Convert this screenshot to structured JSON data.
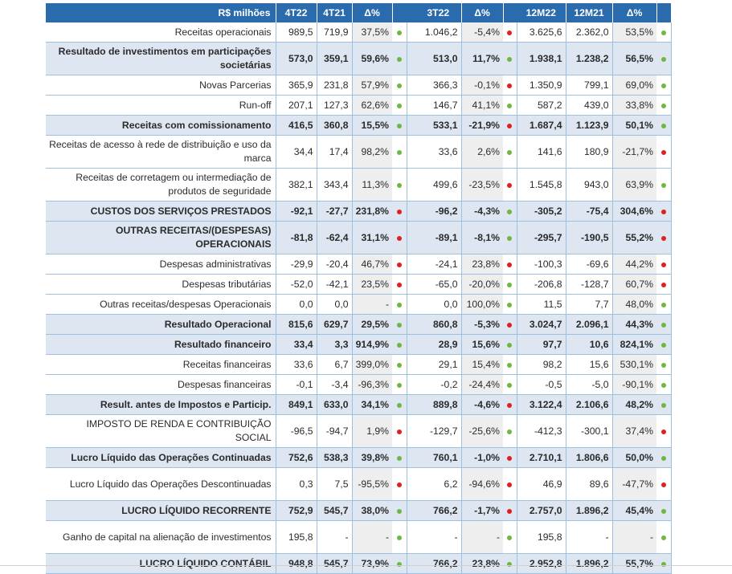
{
  "header": {
    "label": "R$ milhões",
    "columns": [
      "4T22",
      "4T21",
      "Δ%",
      "3T22",
      "Δ%",
      "12M22",
      "12M21",
      "Δ%"
    ]
  },
  "colors": {
    "header_bg": "#2a6bad",
    "highlight_row": "#dde6f1",
    "positive_dot": "#6fb83f",
    "negative_dot": "#e02020"
  },
  "rows": [
    {
      "label": "Receitas operacionais",
      "bold": false,
      "two_line": false,
      "v4t22": "989,5",
      "v4t21": "719,9",
      "d1": "37,5%",
      "s1": "green",
      "v3t22": "1.046,2",
      "d2": "-5,4%",
      "s2": "red",
      "v12m22": "3.625,6",
      "v12m21": "2.362,0",
      "d3": "53,5%",
      "s3": "green"
    },
    {
      "label": "Resultado de investimentos em participações societárias",
      "bold": true,
      "two_line": true,
      "v4t22": "573,0",
      "v4t21": "359,1",
      "d1": "59,6%",
      "s1": "green",
      "v3t22": "513,0",
      "d2": "11,7%",
      "s2": "green",
      "v12m22": "1.938,1",
      "v12m21": "1.238,2",
      "d3": "56,5%",
      "s3": "green"
    },
    {
      "label": "Novas Parcerias",
      "bold": false,
      "two_line": false,
      "v4t22": "365,9",
      "v4t21": "231,8",
      "d1": "57,9%",
      "s1": "green",
      "v3t22": "366,3",
      "d2": "-0,1%",
      "s2": "red",
      "v12m22": "1.350,9",
      "v12m21": "799,1",
      "d3": "69,0%",
      "s3": "green"
    },
    {
      "label": "Run-off",
      "bold": false,
      "two_line": false,
      "v4t22": "207,1",
      "v4t21": "127,3",
      "d1": "62,6%",
      "s1": "green",
      "v3t22": "146,7",
      "d2": "41,1%",
      "s2": "green",
      "v12m22": "587,2",
      "v12m21": "439,0",
      "d3": "33,8%",
      "s3": "green"
    },
    {
      "label": "Receitas com comissionamento",
      "bold": true,
      "two_line": false,
      "v4t22": "416,5",
      "v4t21": "360,8",
      "d1": "15,5%",
      "s1": "green",
      "v3t22": "533,1",
      "d2": "-21,9%",
      "s2": "red",
      "v12m22": "1.687,4",
      "v12m21": "1.123,9",
      "d3": "50,1%",
      "s3": "green"
    },
    {
      "label": "Receitas de acesso à rede de distribuição e uso da marca",
      "bold": false,
      "two_line": true,
      "v4t22": "34,4",
      "v4t21": "17,4",
      "d1": "98,2%",
      "s1": "green",
      "v3t22": "33,6",
      "d2": "2,6%",
      "s2": "green",
      "v12m22": "141,6",
      "v12m21": "180,9",
      "d3": "-21,7%",
      "s3": "red"
    },
    {
      "label": "Receitas de corretagem ou intermediação de produtos de seguridade",
      "bold": false,
      "two_line": true,
      "v4t22": "382,1",
      "v4t21": "343,4",
      "d1": "11,3%",
      "s1": "green",
      "v3t22": "499,6",
      "d2": "-23,5%",
      "s2": "red",
      "v12m22": "1.545,8",
      "v12m21": "943,0",
      "d3": "63,9%",
      "s3": "green"
    },
    {
      "label": "CUSTOS DOS SERVIÇOS PRESTADOS",
      "bold": true,
      "two_line": false,
      "v4t22": "-92,1",
      "v4t21": "-27,7",
      "d1": "231,8%",
      "s1": "red",
      "v3t22": "-96,2",
      "d2": "-4,3%",
      "s2": "green",
      "v12m22": "-305,2",
      "v12m21": "-75,4",
      "d3": "304,6%",
      "s3": "red"
    },
    {
      "label": "OUTRAS RECEITAS/(DESPESAS) OPERACIONAIS",
      "bold": true,
      "two_line": true,
      "v4t22": "-81,8",
      "v4t21": "-62,4",
      "d1": "31,1%",
      "s1": "red",
      "v3t22": "-89,1",
      "d2": "-8,1%",
      "s2": "green",
      "v12m22": "-295,7",
      "v12m21": "-190,5",
      "d3": "55,2%",
      "s3": "red"
    },
    {
      "label": "Despesas administrativas",
      "bold": false,
      "two_line": false,
      "v4t22": "-29,9",
      "v4t21": "-20,4",
      "d1": "46,7%",
      "s1": "red",
      "v3t22": "-24,1",
      "d2": "23,8%",
      "s2": "red",
      "v12m22": "-100,3",
      "v12m21": "-69,6",
      "d3": "44,2%",
      "s3": "red"
    },
    {
      "label": "Despesas tributárias",
      "bold": false,
      "two_line": false,
      "v4t22": "-52,0",
      "v4t21": "-42,1",
      "d1": "23,5%",
      "s1": "red",
      "v3t22": "-65,0",
      "d2": "-20,0%",
      "s2": "green",
      "v12m22": "-206,8",
      "v12m21": "-128,7",
      "d3": "60,7%",
      "s3": "red"
    },
    {
      "label": "Outras receitas/despesas Operacionais",
      "bold": false,
      "two_line": false,
      "v4t22": "0,0",
      "v4t21": "0,0",
      "d1": "-",
      "s1": "green",
      "v3t22": "0,0",
      "d2": "100,0%",
      "s2": "green",
      "v12m22": "11,5",
      "v12m21": "7,7",
      "d3": "48,0%",
      "s3": "green"
    },
    {
      "label": "Resultado Operacional",
      "bold": true,
      "two_line": false,
      "v4t22": "815,6",
      "v4t21": "629,7",
      "d1": "29,5%",
      "s1": "green",
      "v3t22": "860,8",
      "d2": "-5,3%",
      "s2": "red",
      "v12m22": "3.024,7",
      "v12m21": "2.096,1",
      "d3": "44,3%",
      "s3": "green"
    },
    {
      "label": "Resultado financeiro",
      "bold": true,
      "two_line": false,
      "v4t22": "33,4",
      "v4t21": "3,3",
      "d1": "914,9%",
      "s1": "green",
      "v3t22": "28,9",
      "d2": "15,6%",
      "s2": "green",
      "v12m22": "97,7",
      "v12m21": "10,6",
      "d3": "824,1%",
      "s3": "green"
    },
    {
      "label": "Receitas financeiras",
      "bold": false,
      "two_line": false,
      "v4t22": "33,6",
      "v4t21": "6,7",
      "d1": "399,0%",
      "s1": "green",
      "v3t22": "29,1",
      "d2": "15,4%",
      "s2": "green",
      "v12m22": "98,2",
      "v12m21": "15,6",
      "d3": "530,1%",
      "s3": "green"
    },
    {
      "label": "Despesas financeiras",
      "bold": false,
      "two_line": false,
      "v4t22": "-0,1",
      "v4t21": "-3,4",
      "d1": "-96,3%",
      "s1": "green",
      "v3t22": "-0,2",
      "d2": "-24,4%",
      "s2": "green",
      "v12m22": "-0,5",
      "v12m21": "-5,0",
      "d3": "-90,1%",
      "s3": "green"
    },
    {
      "label": "Result. antes de Impostos e Particip.",
      "bold": true,
      "two_line": false,
      "v4t22": "849,1",
      "v4t21": "633,0",
      "d1": "34,1%",
      "s1": "green",
      "v3t22": "889,8",
      "d2": "-4,6%",
      "s2": "red",
      "v12m22": "3.122,4",
      "v12m21": "2.106,6",
      "d3": "48,2%",
      "s3": "green"
    },
    {
      "label": "IMPOSTO DE RENDA E CONTRIBUIÇÃO SOCIAL",
      "bold": false,
      "two_line": true,
      "v4t22": "-96,5",
      "v4t21": "-94,7",
      "d1": "1,9%",
      "s1": "red",
      "v3t22": "-129,7",
      "d2": "-25,6%",
      "s2": "green",
      "v12m22": "-412,3",
      "v12m21": "-300,1",
      "d3": "37,4%",
      "s3": "red"
    },
    {
      "label": "Lucro Líquido das Operações Continuadas",
      "bold": true,
      "two_line": false,
      "v4t22": "752,6",
      "v4t21": "538,3",
      "d1": "39,8%",
      "s1": "green",
      "v3t22": "760,1",
      "d2": "-1,0%",
      "s2": "red",
      "v12m22": "2.710,1",
      "v12m21": "1.806,6",
      "d3": "50,0%",
      "s3": "green"
    },
    {
      "label": "Lucro Líquido das Operações Descontinuadas",
      "bold": false,
      "two_line": true,
      "v4t22": "0,3",
      "v4t21": "7,5",
      "d1": "-95,5%",
      "s1": "red",
      "v3t22": "6,2",
      "d2": "-94,6%",
      "s2": "red",
      "v12m22": "46,9",
      "v12m21": "89,6",
      "d3": "-47,7%",
      "s3": "red"
    },
    {
      "label": "LUCRO LÍQUIDO RECORRENTE",
      "bold": true,
      "two_line": false,
      "v4t22": "752,9",
      "v4t21": "545,7",
      "d1": "38,0%",
      "s1": "green",
      "v3t22": "766,2",
      "d2": "-1,7%",
      "s2": "red",
      "v12m22": "2.757,0",
      "v12m21": "1.896,2",
      "d3": "45,4%",
      "s3": "green"
    },
    {
      "label": "Ganho de capital na alienação de investimentos",
      "bold": false,
      "two_line": true,
      "v4t22": "195,8",
      "v4t21": "-",
      "d1": "-",
      "s1": "green",
      "v3t22": "-",
      "d2": "-",
      "s2": "green",
      "v12m22": "195,8",
      "v12m21": "-",
      "d3": "-",
      "s3": "green"
    },
    {
      "label": "LUCRO LÍQUIDO CONTÁBIL",
      "bold": true,
      "two_line": false,
      "v4t22": "948,8",
      "v4t21": "545,7",
      "d1": "73,9%",
      "s1": "green",
      "v3t22": "766,2",
      "d2": "23,8%",
      "s2": "green",
      "v12m22": "2.952,8",
      "v12m21": "1.896,2",
      "d3": "55,7%",
      "s3": "green"
    }
  ]
}
